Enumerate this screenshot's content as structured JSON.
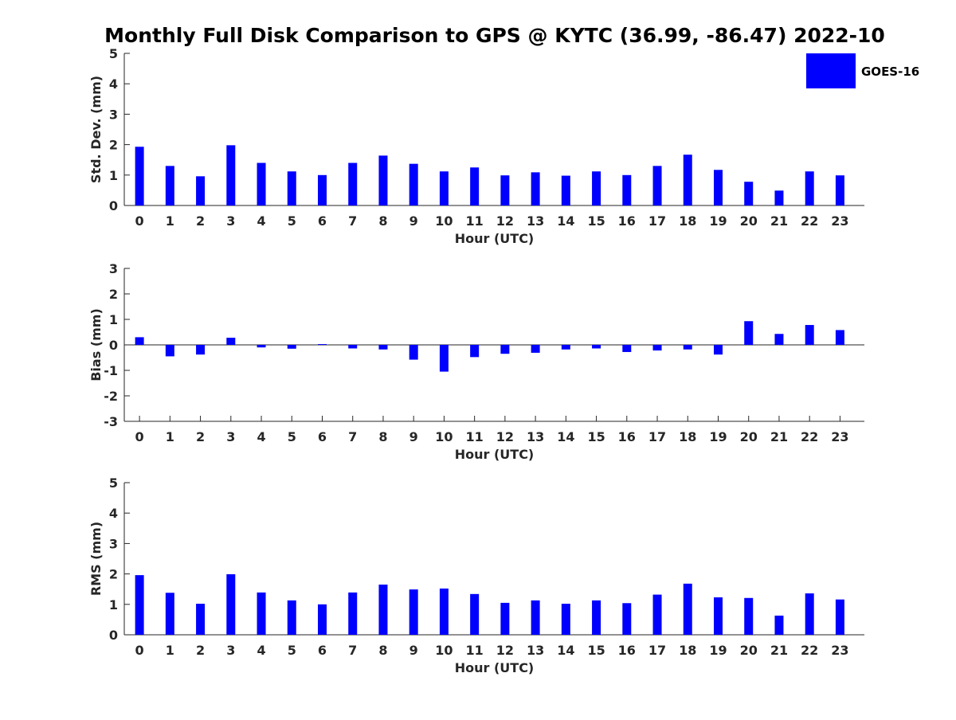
{
  "chart_data": {
    "title": "Monthly Full Disk Comparison to GPS @ KYTC (36.99, -86.47) 2022-10",
    "type": "bar",
    "legend": {
      "position": "top-right",
      "entries": [
        {
          "label": "GOES-16",
          "color": "#0000ff"
        }
      ]
    },
    "bar_color": "#0000ff",
    "panels": [
      {
        "type": "bar",
        "categories": [
          "0",
          "1",
          "2",
          "3",
          "4",
          "5",
          "6",
          "7",
          "8",
          "9",
          "10",
          "11",
          "12",
          "13",
          "14",
          "15",
          "16",
          "17",
          "18",
          "19",
          "20",
          "21",
          "22",
          "23"
        ],
        "series": [
          {
            "name": "GOES-16",
            "values": [
              1.93,
              1.3,
              0.96,
              1.98,
              1.4,
              1.12,
              1.0,
              1.4,
              1.64,
              1.37,
              1.12,
              1.25,
              0.99,
              1.09,
              0.98,
              1.12,
              1.0,
              1.3,
              1.67,
              1.17,
              0.78,
              0.49,
              1.12,
              0.99
            ]
          }
        ],
        "xlabel": "Hour (UTC)",
        "ylabel": "Std. Dev. (mm)",
        "ylim": [
          0,
          5
        ],
        "yticks": [
          "0",
          "1",
          "2",
          "3",
          "4",
          "5"
        ],
        "grid": false
      },
      {
        "type": "bar",
        "categories": [
          "0",
          "1",
          "2",
          "3",
          "4",
          "5",
          "6",
          "7",
          "8",
          "9",
          "10",
          "11",
          "12",
          "13",
          "14",
          "15",
          "16",
          "17",
          "18",
          "19",
          "20",
          "21",
          "22",
          "23"
        ],
        "series": [
          {
            "name": "GOES-16",
            "values": [
              0.3,
              -0.45,
              -0.38,
              0.28,
              -0.1,
              -0.15,
              0.03,
              -0.14,
              -0.18,
              -0.58,
              -1.05,
              -0.48,
              -0.35,
              -0.31,
              -0.18,
              -0.14,
              -0.28,
              -0.22,
              -0.18,
              -0.38,
              0.93,
              0.43,
              0.78,
              0.58
            ]
          }
        ],
        "xlabel": "Hour (UTC)",
        "ylabel": "Bias (mm)",
        "ylim": [
          -3,
          3
        ],
        "yticks": [
          "-3",
          "-2",
          "-1",
          "0",
          "1",
          "2",
          "3"
        ],
        "grid": false
      },
      {
        "type": "bar",
        "categories": [
          "0",
          "1",
          "2",
          "3",
          "4",
          "5",
          "6",
          "7",
          "8",
          "9",
          "10",
          "11",
          "12",
          "13",
          "14",
          "15",
          "16",
          "17",
          "18",
          "19",
          "20",
          "21",
          "22",
          "23"
        ],
        "series": [
          {
            "name": "GOES-16",
            "values": [
              1.96,
              1.38,
              1.02,
              1.99,
              1.39,
              1.13,
              1.0,
              1.39,
              1.65,
              1.49,
              1.52,
              1.34,
              1.05,
              1.13,
              1.02,
              1.13,
              1.04,
              1.32,
              1.68,
              1.23,
              1.21,
              0.63,
              1.36,
              1.16
            ]
          }
        ],
        "xlabel": "Hour (UTC)",
        "ylabel": "RMS (mm)",
        "ylim": [
          0,
          5
        ],
        "yticks": [
          "0",
          "1",
          "2",
          "3",
          "4",
          "5"
        ],
        "grid": false
      }
    ]
  }
}
